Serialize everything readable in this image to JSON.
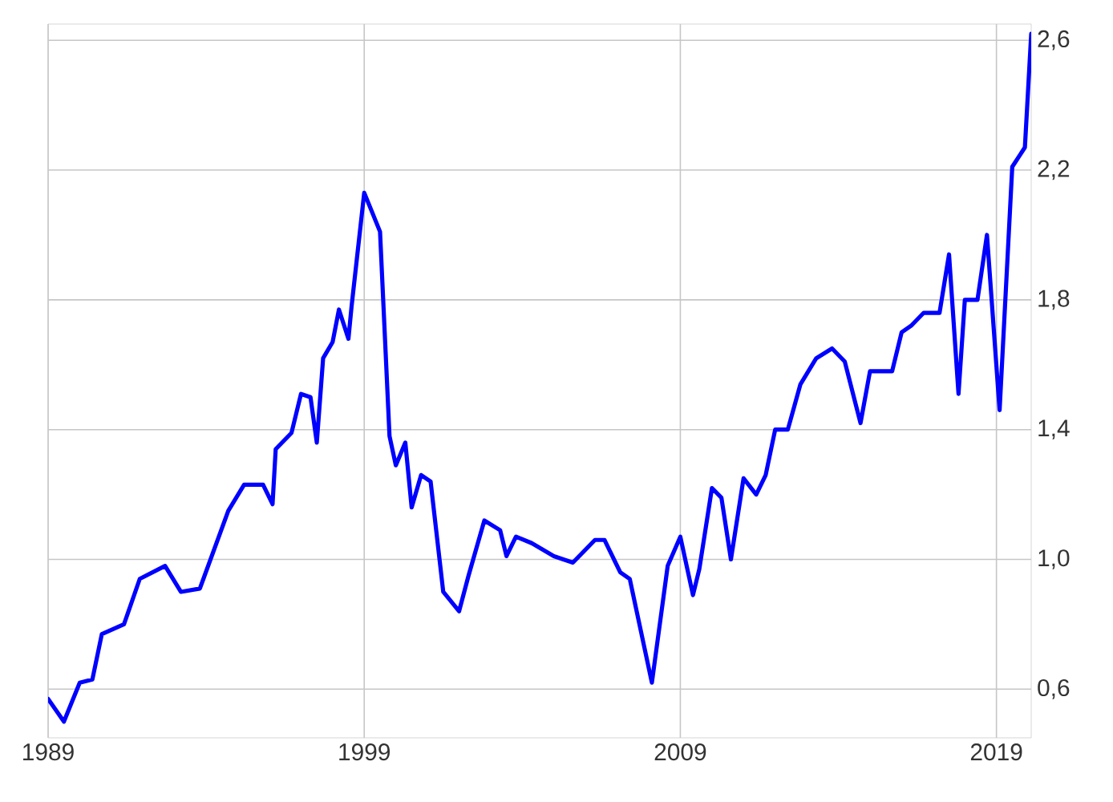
{
  "chart_data": {
    "type": "line",
    "x": [
      1989.0,
      1989.5,
      1990.0,
      1990.4,
      1990.7,
      1991.4,
      1991.9,
      1992.7,
      1993.2,
      1993.8,
      1994.7,
      1995.2,
      1995.8,
      1996.1,
      1996.2,
      1996.7,
      1997.0,
      1997.3,
      1997.5,
      1997.7,
      1998.0,
      1998.2,
      1998.5,
      1998.6,
      1999.0,
      1999.5,
      1999.8,
      2000.0,
      2000.3,
      2000.5,
      2000.8,
      2001.1,
      2001.5,
      2002.0,
      2002.3,
      2002.8,
      2003.3,
      2003.5,
      2003.8,
      2004.3,
      2005.0,
      2005.6,
      2006.3,
      2006.6,
      2007.1,
      2007.4,
      2008.1,
      2008.6,
      2009.0,
      2009.4,
      2009.6,
      2010.0,
      2010.3,
      2010.6,
      2011.0,
      2011.4,
      2011.7,
      2012.0,
      2012.4,
      2012.8,
      2013.3,
      2013.8,
      2014.2,
      2014.7,
      2015.0,
      2015.7,
      2016.0,
      2016.3,
      2016.7,
      2017.2,
      2017.5,
      2017.8,
      2018.0,
      2018.4,
      2018.7,
      2019.1,
      2019.5,
      2019.9,
      2020.1
    ],
    "series": [
      {
        "color": "#0000ff",
        "values": [
          0.57,
          0.5,
          0.62,
          0.63,
          0.77,
          0.8,
          0.94,
          0.98,
          0.9,
          0.91,
          1.15,
          1.23,
          1.23,
          1.17,
          1.34,
          1.39,
          1.51,
          1.5,
          1.36,
          1.62,
          1.67,
          1.77,
          1.68,
          1.78,
          2.13,
          2.01,
          1.38,
          1.29,
          1.36,
          1.16,
          1.26,
          1.24,
          0.9,
          0.84,
          0.95,
          1.12,
          1.09,
          1.01,
          1.07,
          1.05,
          1.01,
          0.99,
          1.06,
          1.06,
          0.96,
          0.94,
          0.62,
          0.98,
          1.07,
          0.89,
          0.97,
          1.22,
          1.19,
          1.0,
          1.25,
          1.2,
          1.26,
          1.4,
          1.4,
          1.54,
          1.62,
          1.65,
          1.61,
          1.42,
          1.58,
          1.58,
          1.7,
          1.72,
          1.76,
          1.76,
          1.94,
          1.51,
          1.8,
          1.8,
          2.0,
          1.46,
          2.21,
          2.27,
          2.62
        ]
      }
    ],
    "xlim": [
      1989,
      2020.1
    ],
    "ylim": [
      0.45,
      2.65
    ],
    "xticks": [
      1989,
      1999,
      2009,
      2019
    ],
    "yticks": [
      {
        "value": 0.6,
        "label": "0,6"
      },
      {
        "value": 1.0,
        "label": "1,0"
      },
      {
        "value": 1.4,
        "label": "1,4"
      },
      {
        "value": 1.8,
        "label": "1,8"
      },
      {
        "value": 2.2,
        "label": "2,2"
      },
      {
        "value": 2.6,
        "label": "2,6"
      }
    ],
    "grid": true,
    "marker": "none",
    "line_style": "solid"
  }
}
